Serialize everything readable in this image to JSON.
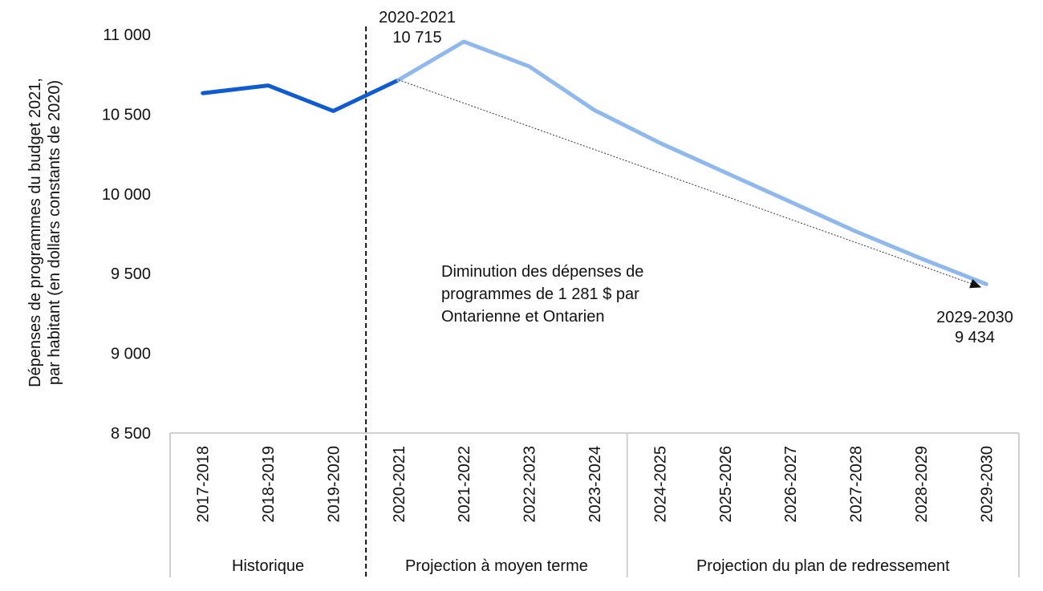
{
  "chart_data": {
    "type": "line",
    "title": "",
    "xlabel": "",
    "ylabel": [
      "Dépenses de programmes du budget 2021,",
      "par habitant (en dollars constants de 2020)"
    ],
    "ylim": [
      8500,
      11000
    ],
    "yticks": [
      11000,
      10500,
      10000,
      9500,
      9000,
      8500
    ],
    "ytick_labels": [
      "11 000",
      "10 500",
      "10 000",
      "9 500",
      "9 000",
      "8 500"
    ],
    "categories": [
      "2017-2018",
      "2018-2019",
      "2019-2020",
      "2020-2021",
      "2021-2022",
      "2022-2023",
      "2023-2024",
      "2024-2025",
      "2025-2026",
      "2026-2027",
      "2027-2028",
      "2028-2029",
      "2029-2030"
    ],
    "series": [
      {
        "values": [
          10632,
          10680,
          10520,
          10715,
          null,
          null,
          null,
          null,
          null,
          null,
          null,
          null,
          null
        ],
        "color": "#0f5bd1"
      },
      {
        "values": [
          null,
          null,
          null,
          10715,
          10955,
          10800,
          10525,
          10320,
          10135,
          9950,
          9765,
          9595,
          9434
        ],
        "color": "#8fb8ef"
      }
    ],
    "groups": [
      {
        "label": "Historique",
        "from": 0,
        "to": 2
      },
      {
        "label": "Projection à moyen terme",
        "from": 3,
        "to": 6
      },
      {
        "label": "Projection du plan de redressement",
        "from": 7,
        "to": 12
      }
    ],
    "annotations": {
      "start_label": [
        "2020-2021",
        "10 715"
      ],
      "end_label": [
        "2029-2030",
        "9 434"
      ],
      "message": [
        "Diminution des dépenses de",
        "programmes de 1 281 $ par",
        "Ontarienne et Ontarien"
      ]
    },
    "grid": false,
    "legend": "none"
  }
}
